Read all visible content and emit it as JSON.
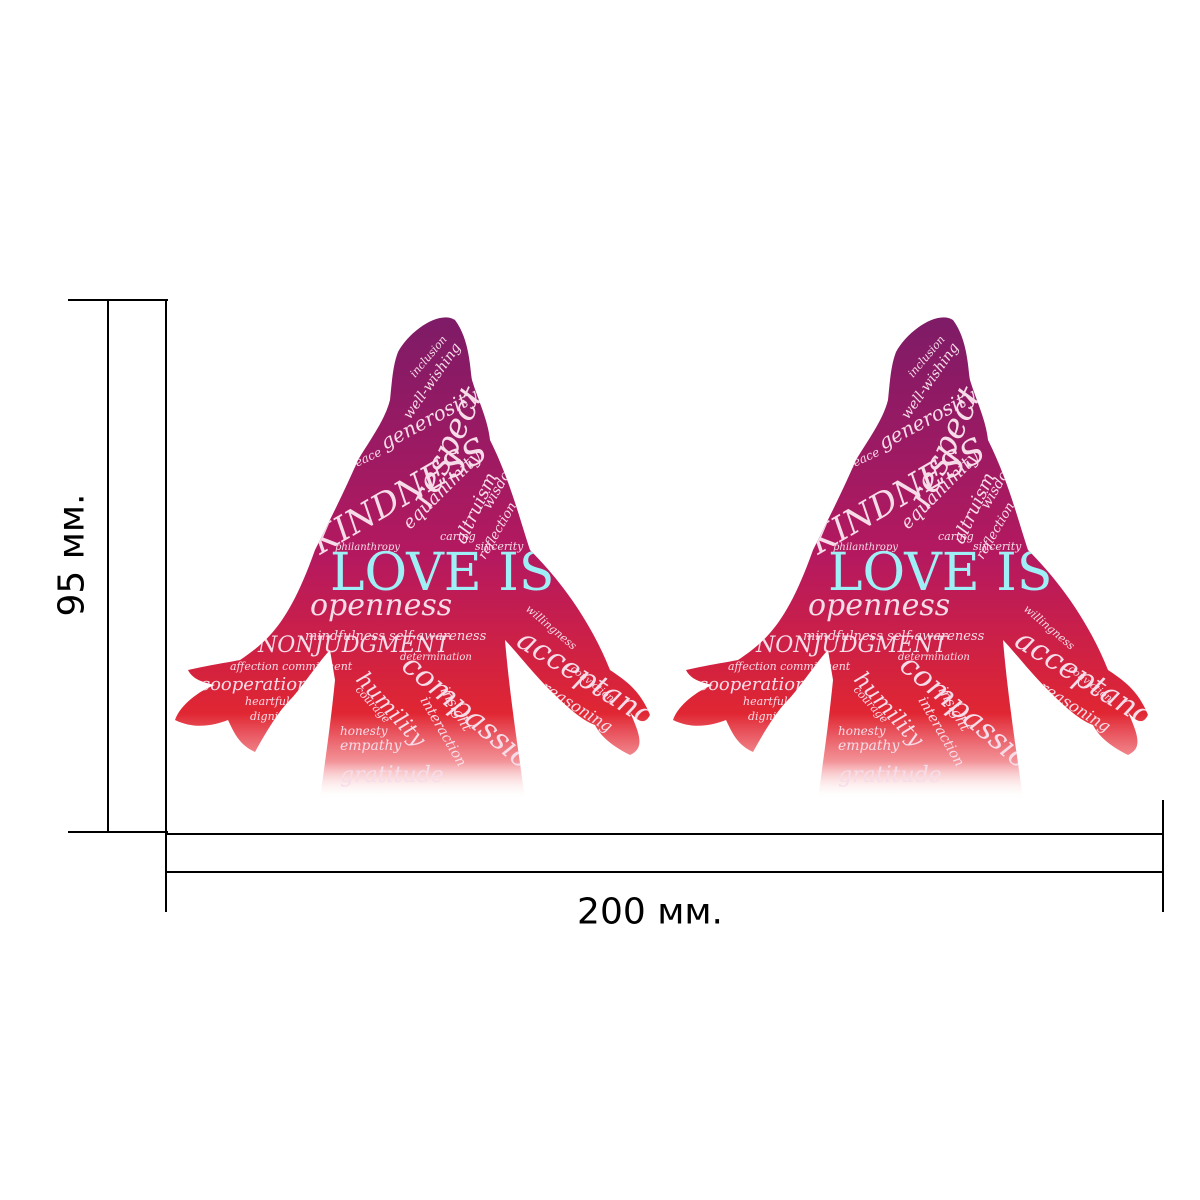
{
  "dimensions": {
    "height_label": "95 мм.",
    "width_label": "200 мм."
  },
  "artwork": {
    "words": [
      {
        "text": "LOVE IS",
        "emphasis": "large-cyan"
      },
      {
        "text": "KINDNESS",
        "emphasis": "large"
      },
      {
        "text": "respect",
        "emphasis": "large"
      },
      {
        "text": "openness",
        "emphasis": "large"
      },
      {
        "text": "NONJUDGMENT",
        "emphasis": "large"
      },
      {
        "text": "acceptance",
        "emphasis": "large"
      },
      {
        "text": "compassion",
        "emphasis": "large"
      },
      {
        "text": "humility",
        "emphasis": "medium"
      },
      {
        "text": "gratitude",
        "emphasis": "medium"
      },
      {
        "text": "cooperation",
        "emphasis": "medium"
      },
      {
        "text": "generosity",
        "emphasis": "medium"
      },
      {
        "text": "equanimity",
        "emphasis": "medium"
      },
      {
        "text": "altruism",
        "emphasis": "medium"
      },
      {
        "text": "wisdom",
        "emphasis": "small"
      },
      {
        "text": "reflection",
        "emphasis": "small"
      },
      {
        "text": "well-wishing",
        "emphasis": "small"
      },
      {
        "text": "mindfulness self-awareness",
        "emphasis": "small"
      },
      {
        "text": "empathy",
        "emphasis": "small"
      },
      {
        "text": "insight",
        "emphasis": "small"
      },
      {
        "text": "reasoning",
        "emphasis": "small"
      },
      {
        "text": "interaction",
        "emphasis": "small"
      },
      {
        "text": "affection commitment",
        "emphasis": "small"
      },
      {
        "text": "heartfulness",
        "emphasis": "small"
      },
      {
        "text": "honesty",
        "emphasis": "small"
      },
      {
        "text": "dignity",
        "emphasis": "small"
      },
      {
        "text": "peace",
        "emphasis": "small"
      },
      {
        "text": "sincerity",
        "emphasis": "small"
      },
      {
        "text": "caring",
        "emphasis": "small"
      },
      {
        "text": "philanthropy",
        "emphasis": "small"
      },
      {
        "text": "willingness",
        "emphasis": "small"
      },
      {
        "text": "determination",
        "emphasis": "small"
      },
      {
        "text": "inclusion",
        "emphasis": "small"
      },
      {
        "text": "courage",
        "emphasis": "small"
      },
      {
        "text": "conviction",
        "emphasis": "small"
      }
    ],
    "colors": {
      "top": "#7e1b67",
      "middle": "#b5195f",
      "bottom": "#e02632",
      "accent_text": "#9ef0f6",
      "word_text": "#f6dce8",
      "background": "#ffffff",
      "lines": "#000000"
    }
  }
}
